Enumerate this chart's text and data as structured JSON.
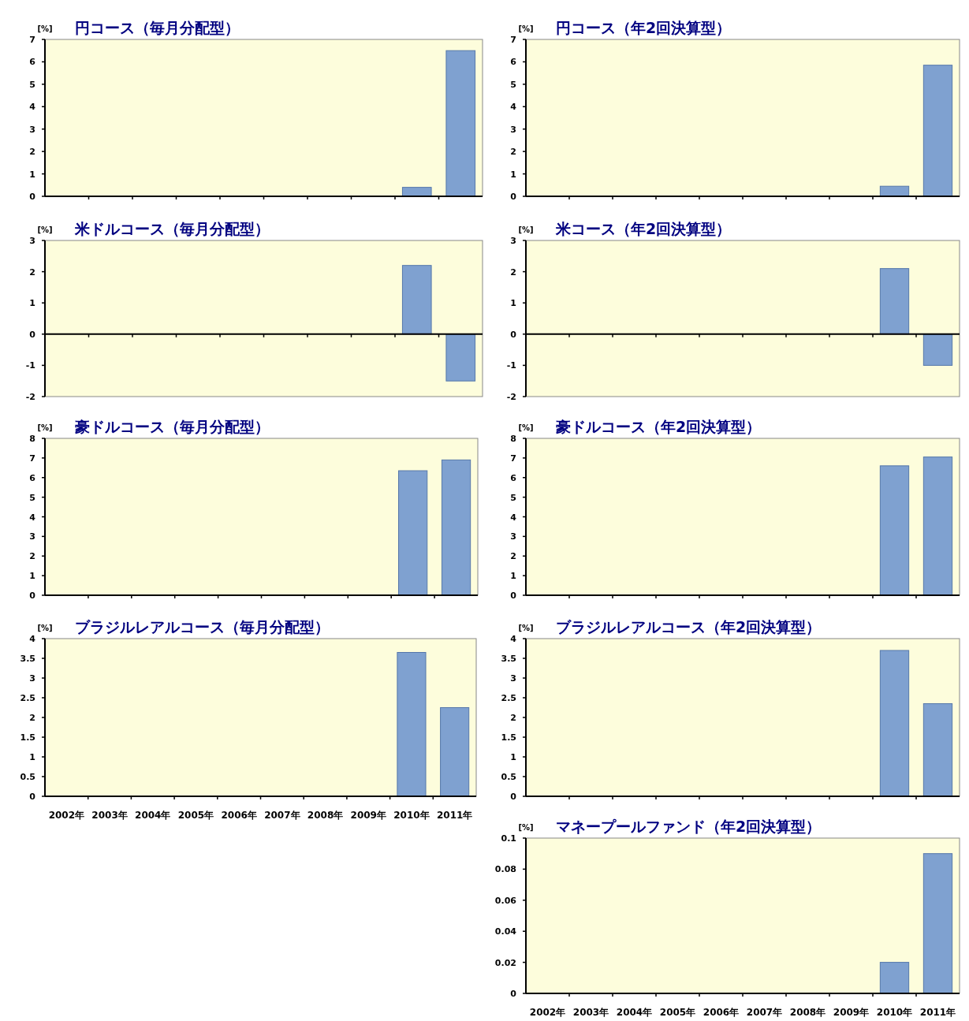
{
  "chart_data": [
    {
      "type": "bar",
      "title": "円コース（毎月分配型）",
      "ylabel": "[%]",
      "categories": [
        null,
        null,
        null,
        null,
        null,
        null,
        null,
        null,
        null,
        null
      ],
      "values": [
        null,
        null,
        null,
        null,
        null,
        null,
        null,
        null,
        0.4,
        6.5
      ],
      "color": "#7fa1d0",
      "ylim": [
        0,
        7
      ],
      "yticks": [
        0,
        1,
        2,
        3,
        4,
        5,
        6,
        7
      ],
      "tick_labels": "y"
    },
    {
      "type": "bar",
      "title": "円コース（年2回決算型）",
      "ylabel": "[%]",
      "categories": [
        null,
        null,
        null,
        null,
        null,
        null,
        null,
        null,
        null,
        null
      ],
      "values": [
        null,
        null,
        null,
        null,
        null,
        null,
        null,
        null,
        0.45,
        5.85
      ],
      "color": "#7fa1d0",
      "ylim": [
        0,
        7
      ],
      "yticks": [
        0,
        1,
        2,
        3,
        4,
        5,
        6,
        7
      ],
      "tick_labels": "y"
    },
    {
      "type": "bar",
      "title": "米ドルコース（毎月分配型）",
      "ylabel": "[%]",
      "categories": [
        null,
        null,
        null,
        null,
        null,
        null,
        null,
        null,
        null,
        null
      ],
      "values": [
        null,
        null,
        null,
        null,
        null,
        null,
        null,
        null,
        2.2,
        -1.5
      ],
      "color": "#7fa1d0",
      "ylim": [
        -2,
        3
      ],
      "yticks": [
        -2,
        -1,
        0,
        1,
        2,
        3
      ],
      "tick_labels": "y"
    },
    {
      "type": "bar",
      "title": "米コース（年2回決算型）",
      "ylabel": "[%]",
      "categories": [
        null,
        null,
        null,
        null,
        null,
        null,
        null,
        null,
        null,
        null
      ],
      "values": [
        null,
        null,
        null,
        null,
        null,
        null,
        null,
        null,
        2.1,
        -1.0
      ],
      "color": "#7fa1d0",
      "ylim": [
        -2,
        3
      ],
      "yticks": [
        -2,
        -1,
        0,
        1,
        2,
        3
      ],
      "tick_labels": "y"
    },
    {
      "type": "bar",
      "title": "豪ドルコース（毎月分配型）",
      "ylabel": "[%]",
      "categories": [
        null,
        null,
        null,
        null,
        null,
        null,
        null,
        null,
        null,
        null
      ],
      "values": [
        null,
        null,
        null,
        null,
        null,
        null,
        null,
        null,
        6.35,
        6.9
      ],
      "color": "#7fa1d0",
      "ylim": [
        0,
        8
      ],
      "yticks": [
        0,
        1,
        2,
        3,
        4,
        5,
        6,
        7,
        8
      ],
      "tick_labels": "y"
    },
    {
      "type": "bar",
      "title": "豪ドルコース（年2回決算型）",
      "ylabel": "[%]",
      "categories": [
        null,
        null,
        null,
        null,
        null,
        null,
        null,
        null,
        null,
        null
      ],
      "values": [
        null,
        null,
        null,
        null,
        null,
        null,
        null,
        null,
        6.6,
        7.05
      ],
      "color": "#7fa1d0",
      "ylim": [
        0,
        8
      ],
      "yticks": [
        0,
        1,
        2,
        3,
        4,
        5,
        6,
        7,
        8
      ],
      "tick_labels": "y"
    },
    {
      "type": "bar",
      "title": "ブラジルレアルコース（毎月分配型）",
      "ylabel": "[%]",
      "categories": [
        "2002年",
        "2003年",
        "2004年",
        "2005年",
        "2006年",
        "2007年",
        "2008年",
        "2009年",
        "2010年",
        "2011年"
      ],
      "values": [
        null,
        null,
        null,
        null,
        null,
        null,
        null,
        null,
        3.65,
        2.25
      ],
      "color": "#7fa1d0",
      "ylim": [
        0,
        4
      ],
      "yticks": [
        0,
        0.5,
        1,
        1.5,
        2,
        2.5,
        3,
        3.5,
        4
      ]
    },
    {
      "type": "bar",
      "title": "ブラジルレアルコース（年2回決算型）",
      "ylabel": "[%]",
      "categories": [
        null,
        null,
        null,
        null,
        null,
        null,
        null,
        null,
        null,
        null
      ],
      "values": [
        null,
        null,
        null,
        null,
        null,
        null,
        null,
        null,
        3.7,
        2.35
      ],
      "color": "#7fa1d0",
      "ylim": [
        0,
        4
      ],
      "yticks": [
        0,
        0.5,
        1,
        1.5,
        2,
        2.5,
        3,
        3.5,
        4
      ],
      "tick_labels": "y"
    },
    {
      "type": "bar",
      "title": "マネープールファンド（年2回決算型）",
      "ylabel": "[%]",
      "categories": [
        "2002年",
        "2003年",
        "2004年",
        "2005年",
        "2006年",
        "2007年",
        "2008年",
        "2009年",
        "2010年",
        "2011年"
      ],
      "values": [
        null,
        null,
        null,
        null,
        null,
        null,
        null,
        null,
        0.02,
        0.09
      ],
      "color": "#7fa1d0",
      "ylim": [
        0,
        0.1
      ],
      "yticks": [
        0,
        0.02,
        0.04,
        0.06,
        0.08,
        0.1
      ]
    }
  ]
}
